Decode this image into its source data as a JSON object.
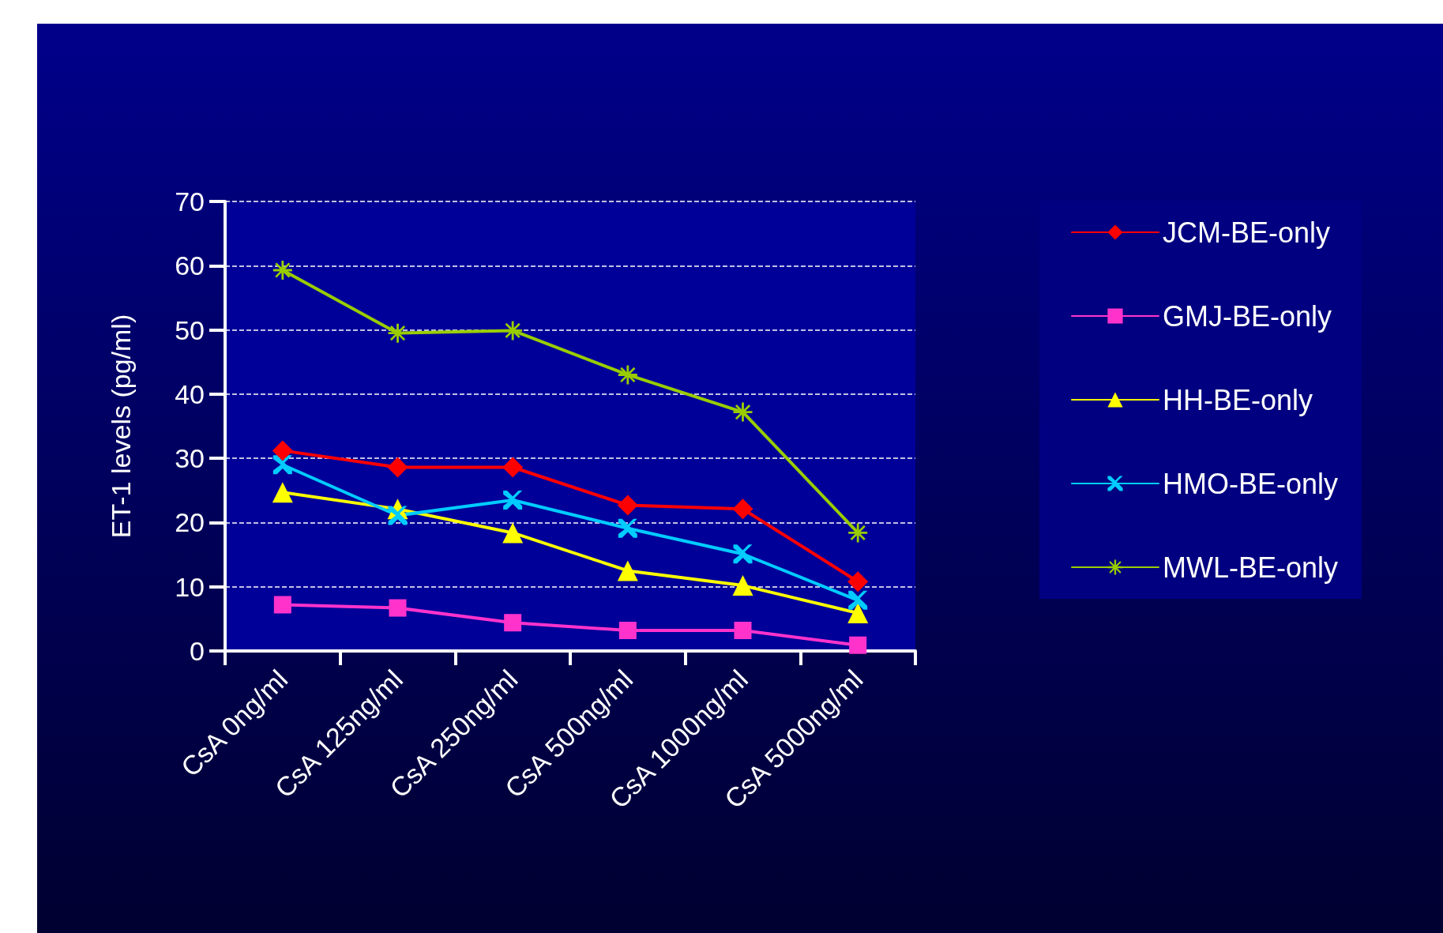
{
  "chart_data": {
    "type": "line",
    "ylabel": "ET-1 levels (pg/ml)",
    "categories": [
      "CsA 0ng/ml",
      "CsA 125ng/ml",
      "CsA 250ng/ml",
      "CsA 500ng/ml",
      "CsA 1000ng/ml",
      "CsA 5000ng/ml"
    ],
    "series": [
      {
        "name": "JCM-BE-only",
        "color": "#ff0000",
        "marker": "diamond",
        "values": [
          31.2,
          28.6,
          28.6,
          22.7,
          22.1,
          10.8
        ]
      },
      {
        "name": "GMJ-BE-only",
        "color": "#ff33cc",
        "marker": "square",
        "values": [
          7.2,
          6.7,
          4.4,
          3.2,
          3.2,
          0.9
        ]
      },
      {
        "name": "HH-BE-only",
        "color": "#ffff00",
        "marker": "triangle",
        "values": [
          24.7,
          22.1,
          18.4,
          12.5,
          10.2,
          5.9
        ]
      },
      {
        "name": "HMO-BE-only",
        "color": "#00ccff",
        "marker": "cross",
        "values": [
          29,
          21.1,
          23.5,
          19.1,
          15.1,
          7.9
        ]
      },
      {
        "name": "MWL-BE-only",
        "color": "#99cc00",
        "marker": "star",
        "values": [
          59.3,
          49.5,
          49.9,
          43,
          37.2,
          18.4
        ]
      }
    ],
    "ylim": [
      0,
      70
    ],
    "yticks": [
      0,
      10,
      20,
      30,
      40,
      50,
      60,
      70
    ],
    "grid": "y",
    "legend": "right",
    "line_style": "solid"
  }
}
